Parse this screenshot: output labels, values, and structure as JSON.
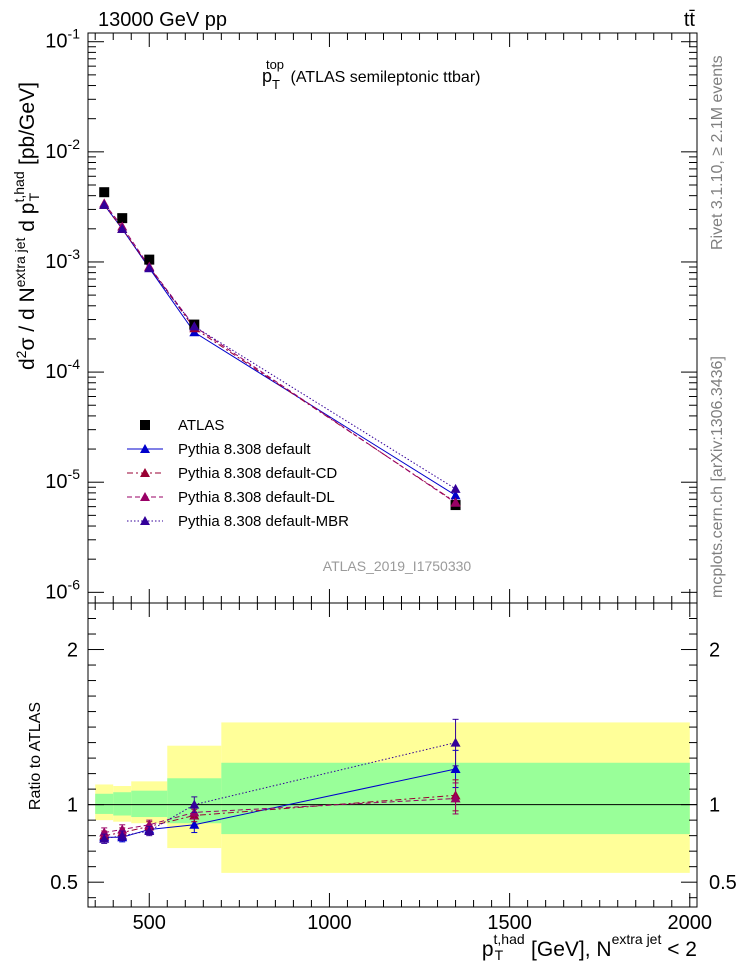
{
  "header": {
    "energy_label": "13000 GeV pp",
    "process_label": "tt̄"
  },
  "side_labels": {
    "rivet": "Rivet 3.1.10, ≥ 2.1M events",
    "mcplots": "mcplots.cern.ch [arXiv:1306.3436]"
  },
  "colors": {
    "ATLAS": "#000000",
    "Pythia 8.308 default": "#0000cc",
    "Pythia 8.308 default-CD": "#990033",
    "Pythia 8.308 default-DL": "#990066",
    "Pythia 8.308 default-MBR": "#330099",
    "band_inner": "#99ff99",
    "band_outer": "#ffff99"
  },
  "chart_data": [
    {
      "type": "scatter",
      "title": "p_T^top (ATLAS semileptonic ttbar)",
      "title_parts": {
        "main": "p",
        "sup": "top",
        "sub": "T",
        "rest": " (ATLAS semileptonic ttbar)"
      },
      "ylabel": "d²σ / d N^(extra jet) d p_T^(t,had) [pb/GeV]",
      "yscale": "log",
      "ylim": [
        8e-07,
        0.12
      ],
      "xlim": [
        330,
        2020
      ],
      "grid": false,
      "legend_position": "lower-left",
      "analysis_label": "ATLAS_2019_I1750330",
      "y_tick_labels": [
        "10^-1",
        "10^-2",
        "10^-3",
        "10^-4",
        "10^-5",
        "10^-6"
      ],
      "x": [
        375,
        425,
        500,
        625,
        1350
      ],
      "series": [
        {
          "name": "ATLAS",
          "marker": "square",
          "values": [
            0.0043,
            0.0025,
            0.00105,
            0.00027,
            6.2e-06
          ]
        },
        {
          "name": "Pythia 8.308 default",
          "marker": "triangle",
          "line": "solid",
          "values": [
            0.0033,
            0.002,
            0.00088,
            0.00023,
            7.6e-06
          ]
        },
        {
          "name": "Pythia 8.308 default-CD",
          "marker": "triangle",
          "line": "dashdot",
          "values": [
            0.0033,
            0.002,
            0.0009,
            0.00025,
            6.6e-06
          ]
        },
        {
          "name": "Pythia 8.308 default-DL",
          "marker": "triangle",
          "line": "dashed",
          "values": [
            0.0034,
            0.0021,
            0.00091,
            0.00026,
            6.5e-06
          ]
        },
        {
          "name": "Pythia 8.308 default-MBR",
          "marker": "triangle",
          "line": "dotted",
          "values": [
            0.0033,
            0.002,
            0.00088,
            0.00026,
            8.7e-06
          ]
        }
      ]
    },
    {
      "type": "scatter",
      "ylabel": "Ratio to ATLAS",
      "xlabel": "p_T^(t,had) [GeV], N^(extra jet) < 2",
      "xlabel_parts": {
        "main": "p",
        "sup": "t,had",
        "sub": "T",
        "mid": " [GeV], N",
        "sup2": "extra jet",
        "end": " < 2"
      },
      "ylim": [
        0.34,
        2.3
      ],
      "xlim": [
        330,
        2020
      ],
      "reference_line": 1,
      "y_ticks": [
        0.5,
        1,
        2
      ],
      "y_tick_labels": [
        "0.5",
        "1",
        "2"
      ],
      "x_ticks": [
        500,
        1000,
        1500,
        2000
      ],
      "x_tick_labels": [
        "500",
        "1000",
        "1500",
        "2000"
      ],
      "bins": [
        {
          "low": 350,
          "high": 400,
          "inner": [
            0.94,
            1.07
          ],
          "outer": [
            0.9,
            1.13
          ]
        },
        {
          "low": 400,
          "high": 450,
          "inner": [
            0.93,
            1.08
          ],
          "outer": [
            0.89,
            1.12
          ]
        },
        {
          "low": 450,
          "high": 550,
          "inner": [
            0.92,
            1.09
          ],
          "outer": [
            0.88,
            1.15
          ]
        },
        {
          "low": 550,
          "high": 700,
          "inner": [
            0.88,
            1.17
          ],
          "outer": [
            0.72,
            1.38
          ]
        },
        {
          "low": 700,
          "high": 2000,
          "inner": [
            0.81,
            1.27
          ],
          "outer": [
            0.56,
            1.53
          ]
        }
      ],
      "x": [
        375,
        425,
        500,
        625,
        1350
      ],
      "series": [
        {
          "name": "Pythia 8.308 default",
          "values": [
            0.79,
            0.79,
            0.84,
            0.87,
            1.23
          ],
          "errors": [
            0.03,
            0.03,
            0.03,
            0.05,
            0.12
          ]
        },
        {
          "name": "Pythia 8.308 default-CD",
          "values": [
            0.8,
            0.82,
            0.86,
            0.93,
            1.06
          ],
          "errors": [
            0.03,
            0.03,
            0.03,
            0.04,
            0.1
          ]
        },
        {
          "name": "Pythia 8.308 default-DL",
          "values": [
            0.82,
            0.84,
            0.87,
            0.95,
            1.04
          ],
          "errors": [
            0.03,
            0.03,
            0.03,
            0.04,
            0.1
          ]
        },
        {
          "name": "Pythia 8.308 default-MBR",
          "values": [
            0.78,
            0.8,
            0.83,
            1.0,
            1.4
          ],
          "errors": [
            0.03,
            0.03,
            0.03,
            0.05,
            0.15
          ]
        }
      ]
    }
  ]
}
